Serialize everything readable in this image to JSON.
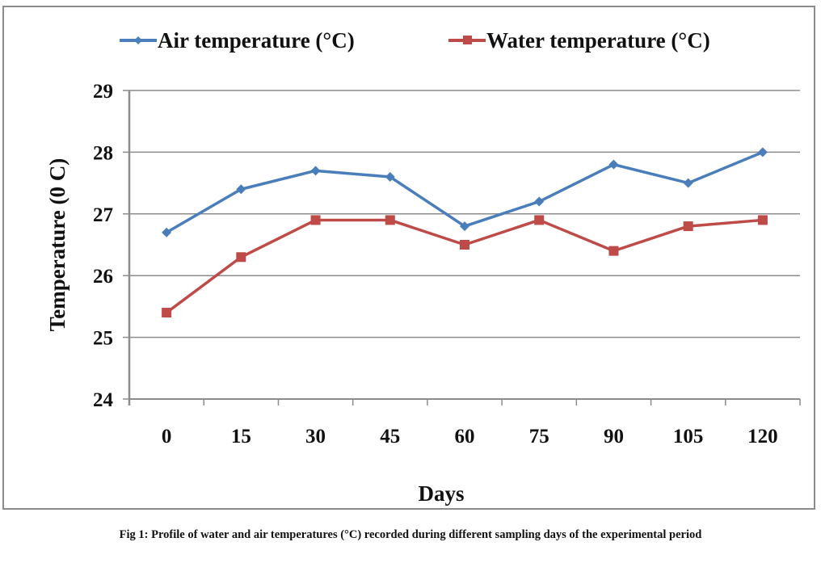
{
  "chart_data": {
    "type": "line",
    "title": "",
    "xlabel": "Days",
    "ylabel": "Temperature (0 C)",
    "x": [
      0,
      15,
      30,
      45,
      60,
      75,
      90,
      105,
      120
    ],
    "categories": [
      "0",
      "15",
      "30",
      "45",
      "60",
      "75",
      "90",
      "105",
      "120"
    ],
    "ylim": [
      24,
      29
    ],
    "yticks": [
      24,
      25,
      26,
      27,
      28,
      29
    ],
    "grid": true,
    "legend_position": "top",
    "series": [
      {
        "name": "Air temperature (°C)",
        "color": "#4a7ebb",
        "marker": "diamond",
        "values": [
          26.7,
          27.4,
          27.7,
          27.6,
          26.8,
          27.2,
          27.8,
          27.5,
          28.0
        ]
      },
      {
        "name": "Water temperature (°C)",
        "color": "#be4b48",
        "marker": "square",
        "values": [
          25.4,
          26.3,
          26.9,
          26.9,
          26.5,
          26.9,
          26.4,
          26.8,
          26.9
        ]
      }
    ]
  },
  "caption": "Fig 1: Profile of water and air temperatures (°C) recorded during different sampling days of the experimental period"
}
